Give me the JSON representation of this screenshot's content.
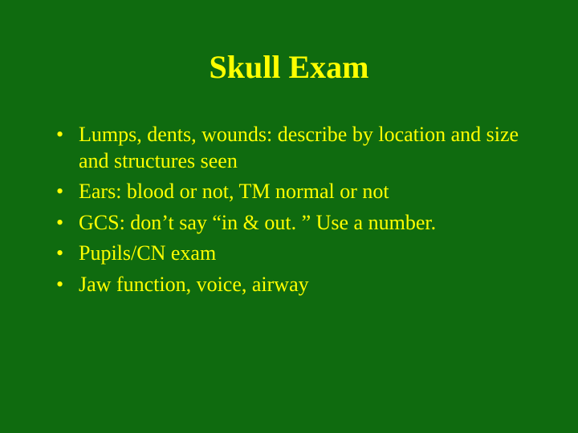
{
  "slide": {
    "background_color": "#0f6b0f",
    "text_color": "#ffff00",
    "title": "Skull Exam",
    "title_fontsize": 40,
    "body_fontsize": 26,
    "font_family": "Times New Roman",
    "bullets": [
      {
        "text": "Lumps, dents, wounds:  describe by location and size and structures seen"
      },
      {
        "text": "Ears:  blood or not, TM normal or not"
      },
      {
        "text": "GCS:  don’t say “in & out. ”  Use a number."
      },
      {
        "text": "Pupils/CN exam"
      },
      {
        "text": "Jaw function, voice, airway"
      }
    ]
  }
}
